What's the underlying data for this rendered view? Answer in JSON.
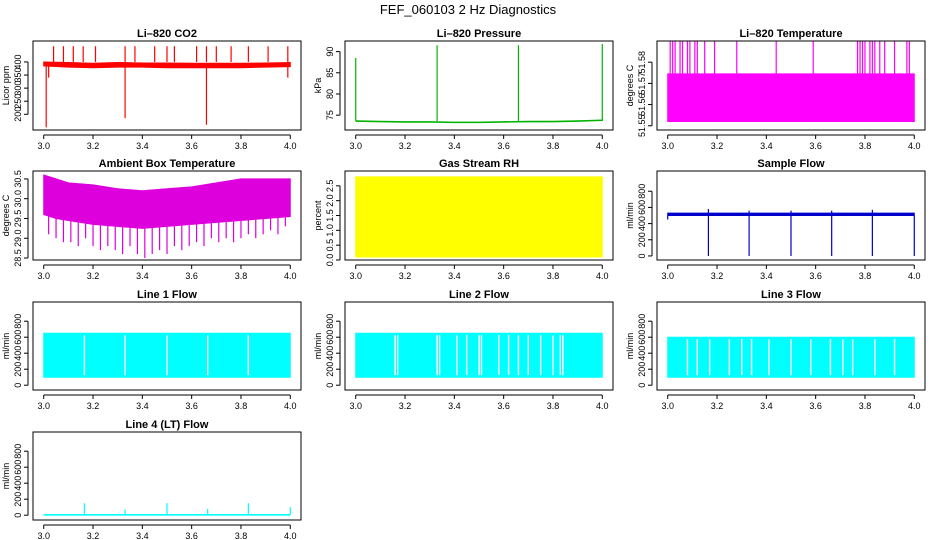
{
  "figure_title": "FEF_060103  2 Hz Diagnostics",
  "chart_data": [
    {
      "id": "co2",
      "type": "line",
      "title": "Li–820 CO2",
      "ylabel": "Licor ppm",
      "color": "#ff0000",
      "xlim": [
        3.0,
        4.0
      ],
      "ylim": [
        140,
        480
      ],
      "xticks": [
        3.0,
        3.2,
        3.4,
        3.6,
        3.8,
        4.0
      ],
      "xtick_labels": [
        "3.0",
        "3.2",
        "3.4",
        "3.6",
        "3.8",
        "4.0"
      ],
      "yticks": [
        200,
        250,
        300,
        350,
        400
      ],
      "ytick_labels": [
        "200",
        "250",
        "300",
        "350",
        "400"
      ],
      "series": [
        {
          "name": "baseline",
          "style": "band",
          "x": [
            3.0,
            3.1,
            3.2,
            3.3,
            3.4,
            3.5,
            3.6,
            3.7,
            3.8,
            3.9,
            4.0
          ],
          "low": [
            385,
            380,
            378,
            380,
            380,
            378,
            378,
            378,
            378,
            380,
            382
          ],
          "high": [
            400,
            398,
            395,
            398,
            396,
            396,
            395,
            395,
            395,
            396,
            398
          ]
        },
        {
          "name": "spikes_up",
          "style": "spikes",
          "x": [
            3.04,
            3.08,
            3.12,
            3.16,
            3.21,
            3.33,
            3.37,
            3.45,
            3.5,
            3.53,
            3.62,
            3.66,
            3.7,
            3.76,
            3.83,
            3.91,
            3.99
          ],
          "y": [
            460,
            460,
            460,
            460,
            460,
            460,
            460,
            460,
            460,
            460,
            460,
            460,
            460,
            460,
            460,
            460,
            460
          ]
        },
        {
          "name": "spikes_down",
          "style": "spikes",
          "x": [
            3.01,
            3.02,
            3.33,
            3.66,
            3.99
          ],
          "y": [
            150,
            340,
            185,
            160,
            340
          ]
        }
      ]
    },
    {
      "id": "pressure",
      "type": "line",
      "title": "Li–820 Pressure",
      "ylabel": "kPa",
      "color": "#00b300",
      "xlim": [
        3.0,
        4.0
      ],
      "ylim": [
        71.5,
        92.5
      ],
      "xticks": [
        3.0,
        3.2,
        3.4,
        3.6,
        3.8,
        4.0
      ],
      "xtick_labels": [
        "3.0",
        "3.2",
        "3.4",
        "3.6",
        "3.8",
        "4.0"
      ],
      "yticks": [
        75,
        80,
        85,
        90
      ],
      "ytick_labels": [
        "75",
        "80",
        "85",
        "90"
      ],
      "series": [
        {
          "name": "baseline",
          "style": "line",
          "x": [
            3.0,
            3.1,
            3.2,
            3.3,
            3.4,
            3.5,
            3.6,
            3.7,
            3.8,
            3.9,
            4.0
          ],
          "y": [
            73.6,
            73.5,
            73.4,
            73.4,
            73.3,
            73.3,
            73.4,
            73.5,
            73.5,
            73.6,
            73.8
          ]
        },
        {
          "name": "spikes_up",
          "style": "spikes",
          "x": [
            3.0,
            3.33,
            3.66,
            4.0
          ],
          "y": [
            88.5,
            91.5,
            91.5,
            91.8
          ]
        }
      ]
    },
    {
      "id": "temperature",
      "type": "line",
      "title": "Li–820 Temperature",
      "ylabel": "degrees C",
      "color": "#ff00ff",
      "xlim": [
        3.0,
        4.0
      ],
      "ylim": [
        51.548,
        51.59
      ],
      "xticks": [
        3.0,
        3.2,
        3.4,
        3.6,
        3.8,
        4.0
      ],
      "xtick_labels": [
        "3.0",
        "3.2",
        "3.4",
        "3.6",
        "3.8",
        "4.0"
      ],
      "yticks": [
        51.55,
        51.56,
        51.57,
        51.58
      ],
      "ytick_labels": [
        "51.55",
        "51.56",
        "51.57",
        "51.58"
      ],
      "series": [
        {
          "name": "baseline",
          "style": "band",
          "x": [
            3.0,
            4.0
          ],
          "low": [
            51.552,
            51.552
          ],
          "high": [
            51.5745,
            51.5745
          ]
        },
        {
          "name": "spikes_up",
          "style": "spikes",
          "x": [
            3.01,
            3.02,
            3.03,
            3.05,
            3.06,
            3.08,
            3.09,
            3.11,
            3.12,
            3.15,
            3.19,
            3.28,
            3.44,
            3.59,
            3.77,
            3.78,
            3.79,
            3.8,
            3.82,
            3.83,
            3.84,
            3.86,
            3.88,
            3.92,
            3.97,
            3.98
          ],
          "y": [
            51.591,
            51.591,
            51.591,
            51.591,
            51.591,
            51.591,
            51.591,
            51.591,
            51.591,
            51.591,
            51.591,
            51.591,
            51.591,
            51.591,
            51.591,
            51.591,
            51.591,
            51.591,
            51.591,
            51.591,
            51.591,
            51.591,
            51.591,
            51.591,
            51.591,
            51.591
          ]
        }
      ]
    },
    {
      "id": "ambient",
      "type": "line",
      "title": "Ambient Box Temperature",
      "ylabel": "degrees C",
      "color": "#dd00dd",
      "xlim": [
        3.0,
        4.0
      ],
      "ylim": [
        28.45,
        30.7
      ],
      "xticks": [
        3.0,
        3.2,
        3.4,
        3.6,
        3.8,
        4.0
      ],
      "xtick_labels": [
        "3.0",
        "3.2",
        "3.4",
        "3.6",
        "3.8",
        "4.0"
      ],
      "yticks": [
        28.5,
        29.0,
        29.5,
        30.0,
        30.5
      ],
      "ytick_labels": [
        "28.5",
        "29.0",
        "29.5",
        "30.0",
        "30.5"
      ],
      "series": [
        {
          "name": "range",
          "style": "band",
          "x": [
            3.0,
            3.05,
            3.1,
            3.2,
            3.3,
            3.4,
            3.5,
            3.6,
            3.7,
            3.8,
            3.9,
            4.0
          ],
          "low": [
            29.6,
            29.5,
            29.45,
            29.35,
            29.3,
            29.25,
            29.3,
            29.35,
            29.4,
            29.45,
            29.5,
            29.55
          ],
          "high": [
            30.6,
            30.5,
            30.4,
            30.35,
            30.25,
            30.2,
            30.25,
            30.3,
            30.4,
            30.5,
            30.5,
            30.5
          ]
        },
        {
          "name": "dips",
          "style": "spikes",
          "x": [
            3.02,
            3.05,
            3.08,
            3.11,
            3.14,
            3.17,
            3.2,
            3.23,
            3.26,
            3.29,
            3.32,
            3.35,
            3.38,
            3.41,
            3.44,
            3.47,
            3.5,
            3.53,
            3.56,
            3.59,
            3.62,
            3.65,
            3.68,
            3.71,
            3.74,
            3.77,
            3.8,
            3.83,
            3.86,
            3.89,
            3.92,
            3.95,
            3.98
          ],
          "y": [
            29.1,
            29.0,
            28.9,
            28.9,
            28.8,
            29.0,
            28.8,
            28.7,
            28.8,
            28.7,
            28.6,
            28.8,
            28.6,
            28.5,
            28.6,
            28.7,
            28.6,
            28.8,
            28.7,
            28.8,
            28.9,
            28.8,
            29.0,
            28.9,
            29.0,
            28.9,
            29.0,
            29.1,
            29.0,
            29.1,
            29.2,
            29.1,
            29.3
          ]
        }
      ]
    },
    {
      "id": "rh",
      "type": "area",
      "title": "Gas Stream RH",
      "ylabel": "percent",
      "color": "#ffff00",
      "xlim": [
        3.0,
        4.0
      ],
      "ylim": [
        0.0,
        3.0
      ],
      "xticks": [
        3.0,
        3.2,
        3.4,
        3.6,
        3.8,
        4.0
      ],
      "xtick_labels": [
        "3.0",
        "3.2",
        "3.4",
        "3.6",
        "3.8",
        "4.0"
      ],
      "yticks": [
        0.0,
        0.5,
        1.0,
        1.5,
        2.0,
        2.5
      ],
      "ytick_labels": [
        "0.0",
        "0.5",
        "1.0",
        "1.5",
        "2.0",
        "2.5"
      ],
      "series": [
        {
          "name": "range",
          "style": "band",
          "x": [
            3.0,
            3.2,
            3.4,
            3.6,
            3.8,
            4.0
          ],
          "low": [
            0.1,
            0.1,
            0.1,
            0.1,
            0.1,
            0.1
          ],
          "high": [
            2.8,
            2.8,
            2.8,
            2.8,
            2.8,
            2.8
          ]
        }
      ]
    },
    {
      "id": "sample",
      "type": "line",
      "title": "Sample Flow",
      "ylabel": "ml/min",
      "color": "#0000cc",
      "xlim": [
        3.0,
        4.0
      ],
      "ylim": [
        -50,
        1050
      ],
      "xticks": [
        3.0,
        3.2,
        3.4,
        3.6,
        3.8,
        4.0
      ],
      "xtick_labels": [
        "3.0",
        "3.2",
        "3.4",
        "3.6",
        "3.8",
        "4.0"
      ],
      "yticks": [
        0,
        200,
        400,
        600,
        800
      ],
      "ytick_labels": [
        "0",
        "200",
        "400",
        "600",
        "800"
      ],
      "series": [
        {
          "name": "baseline",
          "style": "band",
          "x": [
            3.0,
            4.0
          ],
          "low": [
            500,
            500
          ],
          "high": [
            530,
            530
          ]
        },
        {
          "name": "spikes_down",
          "style": "spikes",
          "x": [
            3.0,
            3.165,
            3.33,
            3.5,
            3.665,
            3.83,
            4.0
          ],
          "y": [
            450,
            0,
            0,
            0,
            0,
            0,
            0
          ]
        },
        {
          "name": "spikes_up",
          "style": "spikes",
          "x": [
            3.165,
            3.33,
            3.5,
            3.665,
            3.83
          ],
          "y": [
            580,
            560,
            560,
            560,
            570
          ]
        }
      ]
    },
    {
      "id": "line1",
      "type": "area",
      "title": "Line 1 Flow",
      "ylabel": "ml/min",
      "color": "#00ffff",
      "xlim": [
        3.0,
        4.0
      ],
      "ylim": [
        -60,
        1040
      ],
      "xticks": [
        3.0,
        3.2,
        3.4,
        3.6,
        3.8,
        4.0
      ],
      "xtick_labels": [
        "3.0",
        "3.2",
        "3.4",
        "3.6",
        "3.8",
        "4.0"
      ],
      "yticks": [
        0,
        200,
        400,
        600,
        800
      ],
      "ytick_labels": [
        "0",
        "200",
        "400",
        "600",
        "800"
      ],
      "series": [
        {
          "name": "range",
          "style": "band",
          "x": [
            3.0,
            4.0
          ],
          "low": [
            100,
            100
          ],
          "high": [
            650,
            650
          ]
        },
        {
          "name": "gaps",
          "style": "gaps",
          "x": [
            3.165,
            3.33,
            3.5,
            3.665,
            3.83
          ],
          "y": [
            0,
            0,
            0,
            0,
            0
          ]
        }
      ]
    },
    {
      "id": "line2",
      "type": "area",
      "title": "Line 2 Flow",
      "ylabel": "ml/min",
      "color": "#00ffff",
      "xlim": [
        3.0,
        4.0
      ],
      "ylim": [
        -60,
        1040
      ],
      "xticks": [
        3.0,
        3.2,
        3.4,
        3.6,
        3.8,
        4.0
      ],
      "xtick_labels": [
        "3.0",
        "3.2",
        "3.4",
        "3.6",
        "3.8",
        "4.0"
      ],
      "yticks": [
        0,
        200,
        400,
        600,
        800
      ],
      "ytick_labels": [
        "0",
        "200",
        "400",
        "600",
        "800"
      ],
      "series": [
        {
          "name": "range",
          "style": "band",
          "x": [
            3.0,
            4.0
          ],
          "low": [
            100,
            100
          ],
          "high": [
            650,
            650
          ]
        },
        {
          "name": "gaps",
          "style": "gaps",
          "x": [
            3.16,
            3.17,
            3.33,
            3.34,
            3.41,
            3.45,
            3.5,
            3.51,
            3.58,
            3.62,
            3.66,
            3.7,
            3.75,
            3.8,
            3.83,
            3.84
          ],
          "y": [
            0,
            0,
            0,
            0,
            0,
            0,
            0,
            0,
            0,
            0,
            0,
            0,
            0,
            0,
            0,
            0
          ]
        }
      ]
    },
    {
      "id": "line3",
      "type": "area",
      "title": "Line 3 Flow",
      "ylabel": "ml/min",
      "color": "#00ffff",
      "xlim": [
        3.0,
        4.0
      ],
      "ylim": [
        -60,
        1040
      ],
      "xticks": [
        3.0,
        3.2,
        3.4,
        3.6,
        3.8,
        4.0
      ],
      "xtick_labels": [
        "3.0",
        "3.2",
        "3.4",
        "3.6",
        "3.8",
        "4.0"
      ],
      "yticks": [
        0,
        200,
        400,
        600,
        800
      ],
      "ytick_labels": [
        "0",
        "200",
        "400",
        "600",
        "800"
      ],
      "series": [
        {
          "name": "range",
          "style": "band",
          "x": [
            3.0,
            4.0
          ],
          "low": [
            100,
            100
          ],
          "high": [
            600,
            600
          ]
        },
        {
          "name": "gaps",
          "style": "gaps",
          "x": [
            3.08,
            3.12,
            3.17,
            3.25,
            3.3,
            3.34,
            3.41,
            3.5,
            3.58,
            3.66,
            3.71,
            3.75,
            3.84,
            3.92
          ],
          "y": [
            0,
            0,
            0,
            0,
            0,
            0,
            0,
            0,
            0,
            0,
            0,
            0,
            0,
            0
          ]
        }
      ]
    },
    {
      "id": "line4",
      "type": "line",
      "title": "Line 4 (LT) Flow",
      "ylabel": "ml/min",
      "color": "#00ffff",
      "xlim": [
        3.0,
        4.0
      ],
      "ylim": [
        -60,
        1040
      ],
      "xticks": [
        3.0,
        3.2,
        3.4,
        3.6,
        3.8,
        4.0
      ],
      "xtick_labels": [
        "3.0",
        "3.2",
        "3.4",
        "3.6",
        "3.8",
        "4.0"
      ],
      "yticks": [
        0,
        200,
        400,
        600,
        800
      ],
      "ytick_labels": [
        "0",
        "200",
        "400",
        "600",
        "800"
      ],
      "series": [
        {
          "name": "baseline",
          "style": "line",
          "x": [
            3.0,
            4.0
          ],
          "y": [
            5,
            5
          ]
        },
        {
          "name": "spikes_up",
          "style": "spikes",
          "x": [
            3.165,
            3.33,
            3.5,
            3.665,
            3.83,
            4.0
          ],
          "y": [
            150,
            70,
            150,
            80,
            150,
            100
          ]
        }
      ]
    }
  ]
}
